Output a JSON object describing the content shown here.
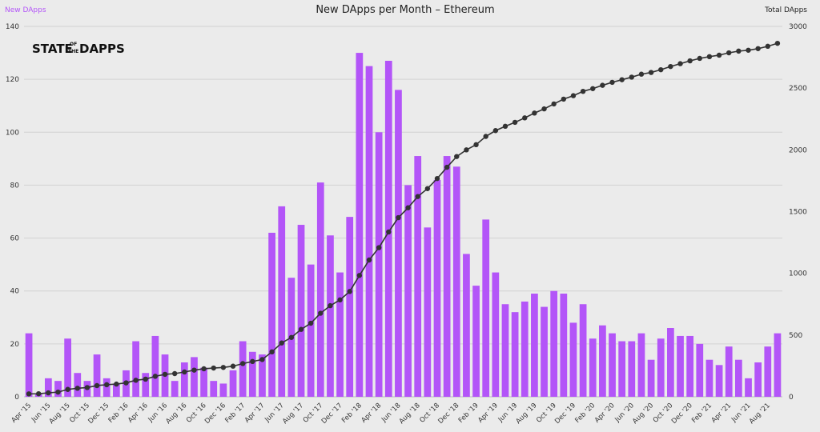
{
  "chart_data": {
    "type": "bar",
    "title": "New DApps per Month – Ethereum",
    "left_axis_label": "New DApps",
    "right_axis_label": "Total DApps",
    "logo": {
      "line1a": "STATE",
      "of": "OF",
      "the": "THE",
      "line1b": "DAPPS"
    },
    "left_ylim": [
      0,
      140
    ],
    "left_yticks": [
      0,
      20,
      40,
      60,
      80,
      100,
      120,
      140
    ],
    "right_ylim": [
      0,
      3000
    ],
    "right_yticks": [
      0,
      500,
      1000,
      1500,
      2000,
      2500,
      3000
    ],
    "grid": true,
    "colors": {
      "bar": "#b355f8",
      "line": "#333333",
      "left_label": "#b355f8",
      "background": "#ebebeb"
    },
    "categories": [
      "Apr '15",
      "May '15",
      "Jun '15",
      "Jul '15",
      "Aug '15",
      "Sep '15",
      "Oct '15",
      "Nov '15",
      "Dec '15",
      "Jan '16",
      "Feb '16",
      "Mar '16",
      "Apr '16",
      "May '16",
      "Jun '16",
      "Jul '16",
      "Aug '16",
      "Sep '16",
      "Oct '16",
      "Nov '16",
      "Dec '16",
      "Jan '17",
      "Feb '17",
      "Mar '17",
      "Apr '17",
      "May '17",
      "Jun '17",
      "Jul '17",
      "Aug '17",
      "Sep '17",
      "Oct '17",
      "Nov '17",
      "Dec '17",
      "Jan '18",
      "Feb '18",
      "Mar '18",
      "Apr '18",
      "May '18",
      "Jun '18",
      "Jul '18",
      "Aug '18",
      "Sep '18",
      "Oct '18",
      "Nov '18",
      "Dec '18",
      "Jan '19",
      "Feb '19",
      "Mar '19",
      "Apr '19",
      "May '19",
      "Jun '19",
      "Jul '19",
      "Aug '19",
      "Sep '19",
      "Oct '19",
      "Nov '19",
      "Dec '19",
      "Jan '20",
      "Feb '20",
      "Mar '20",
      "Apr '20",
      "May '20",
      "Jun '20",
      "Jul '20",
      "Aug '20",
      "Sep '20",
      "Oct '20",
      "Nov '20",
      "Dec '20",
      "Jan '21",
      "Feb '21",
      "Mar '21",
      "Apr '21",
      "May '21",
      "Jun '21",
      "Jul '21",
      "Aug '21",
      "Sep '21"
    ],
    "xtick_labels": [
      "Apr '15",
      "Jun '15",
      "Aug '15",
      "Oct '15",
      "Dec '15",
      "Feb '16",
      "Apr '16",
      "Jun '16",
      "Aug '16",
      "Oct '16",
      "Dec '16",
      "Feb '17",
      "Apr '17",
      "Jun '17",
      "Aug '17",
      "Oct '17",
      "Dec '17",
      "Feb '18",
      "Apr '18",
      "Jun '18",
      "Aug '18",
      "Oct '18",
      "Dec '18",
      "Feb '19",
      "Apr '19",
      "Jun '19",
      "Aug '19",
      "Oct '19",
      "Dec '19",
      "Feb '20",
      "Apr '20",
      "Jun '20",
      "Aug '20",
      "Oct '20",
      "Dec '20",
      "Feb '21",
      "Apr '21",
      "Jun '21",
      "Aug '21"
    ],
    "series": [
      {
        "name": "New DApps",
        "type": "bar",
        "axis": "left",
        "values": [
          24,
          1,
          7,
          6,
          22,
          9,
          6,
          16,
          7,
          5,
          10,
          21,
          9,
          23,
          16,
          6,
          13,
          15,
          11,
          6,
          5,
          10,
          21,
          17,
          16,
          62,
          72,
          45,
          65,
          50,
          81,
          61,
          47,
          68,
          130,
          125,
          100,
          127,
          116,
          80,
          91,
          64,
          82,
          91,
          87,
          54,
          42,
          67,
          47,
          35,
          32,
          36,
          39,
          34,
          40,
          39,
          28,
          35,
          22,
          27,
          24,
          21,
          21,
          24,
          14,
          22,
          26,
          23,
          23,
          20,
          14,
          12,
          19,
          14,
          7,
          13,
          19,
          24
        ]
      },
      {
        "name": "Total DApps",
        "type": "line",
        "axis": "right",
        "values": [
          24,
          25,
          32,
          38,
          60,
          69,
          75,
          91,
          98,
          103,
          113,
          134,
          143,
          166,
          182,
          188,
          201,
          216,
          227,
          233,
          238,
          248,
          269,
          286,
          302,
          364,
          436,
          481,
          546,
          596,
          677,
          738,
          785,
          853,
          983,
          1108,
          1208,
          1335,
          1451,
          1531,
          1622,
          1686,
          1768,
          1859,
          1946,
          2000,
          2042,
          2109,
          2156,
          2191,
          2223,
          2259,
          2298,
          2332,
          2372,
          2411,
          2439,
          2474,
          2496,
          2523,
          2547,
          2568,
          2589,
          2613,
          2627,
          2649,
          2675,
          2698,
          2721,
          2741,
          2755,
          2767,
          2786,
          2800,
          2807,
          2820,
          2839,
          2863
        ]
      }
    ]
  }
}
